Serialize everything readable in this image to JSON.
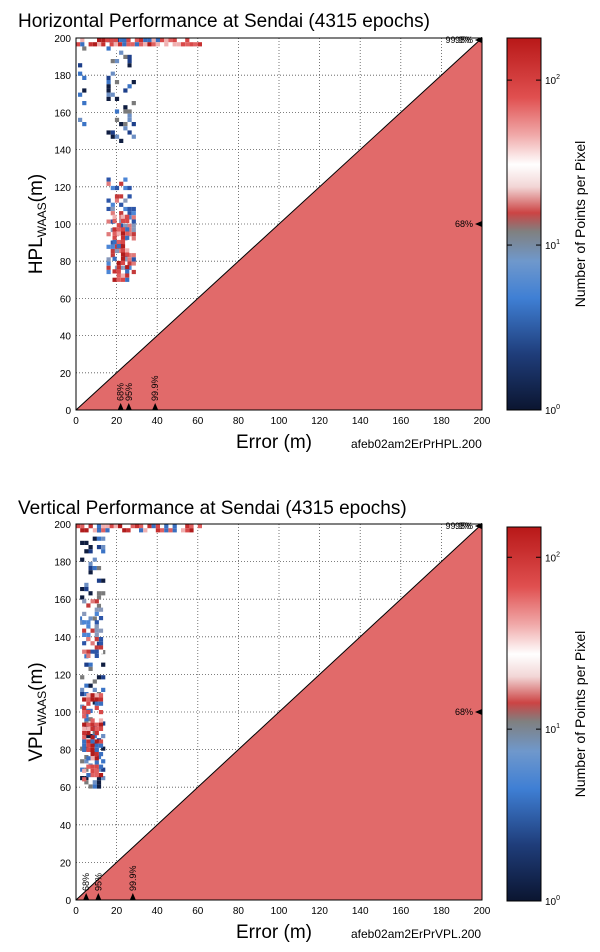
{
  "chart_data": [
    {
      "type": "heatmap",
      "title": "Horizontal Performance at Sendai (4315 epochs)",
      "xlabel": "Error (m)",
      "ylabel_main": "HPL",
      "ylabel_sub": "WAAS",
      "ylabel_unit": "(m)",
      "filename": "afeb02am2ErPrHPL.200",
      "xlim": [
        0,
        200
      ],
      "ylim": [
        0,
        200
      ],
      "xticks": [
        0,
        20,
        40,
        60,
        80,
        100,
        120,
        140,
        160,
        180,
        200
      ],
      "yticks": [
        0,
        20,
        40,
        60,
        80,
        100,
        120,
        140,
        160,
        180,
        200
      ],
      "fill_region": "y <= x (points with error >= protection level)",
      "error_percentiles": [
        {
          "label": "68%",
          "x": 22
        },
        {
          "label": "95%",
          "x": 26
        },
        {
          "label": "99.9%",
          "x": 39
        }
      ],
      "pl_percentiles": [
        {
          "label": "68%",
          "y": 100
        },
        {
          "label": "95%",
          "y": 200
        },
        {
          "label": "99.9%",
          "y": 200
        }
      ],
      "colorbar": {
        "label": "Number of Points per Pixel",
        "scale": "log",
        "ticks": [
          {
            "value": 1,
            "base": "10",
            "exp": "0"
          },
          {
            "value": 10,
            "base": "10",
            "exp": "1"
          },
          {
            "value": 100,
            "base": "10",
            "exp": "2"
          }
        ],
        "range": [
          1,
          180
        ]
      },
      "clusters": [
        {
          "x": [
            1,
            4
          ],
          "y": [
            150,
            200
          ],
          "density": "low"
        },
        {
          "x": [
            15,
            28
          ],
          "y": [
            145,
            200
          ],
          "density": "low"
        },
        {
          "x": [
            15,
            28
          ],
          "y": [
            75,
            125
          ],
          "density": "medium"
        },
        {
          "x": [
            18,
            25
          ],
          "y": [
            70,
            105
          ],
          "density": "high"
        },
        {
          "x": [
            0,
            60
          ],
          "y": [
            196,
            200
          ],
          "density": "high"
        }
      ]
    },
    {
      "type": "heatmap",
      "title": "Vertical Performance at Sendai (4315 epochs)",
      "xlabel": "Error (m)",
      "ylabel_main": "VPL",
      "ylabel_sub": "WAAS",
      "ylabel_unit": "(m)",
      "filename": "afeb02am2ErPrVPL.200",
      "xlim": [
        0,
        200
      ],
      "ylim": [
        0,
        200
      ],
      "xticks": [
        0,
        20,
        40,
        60,
        80,
        100,
        120,
        140,
        160,
        180,
        200
      ],
      "yticks": [
        0,
        20,
        40,
        60,
        80,
        100,
        120,
        140,
        160,
        180,
        200
      ],
      "fill_region": "y <= x (points with error >= protection level)",
      "error_percentiles": [
        {
          "label": "68%",
          "x": 5
        },
        {
          "label": "95%",
          "x": 11
        },
        {
          "label": "99.9%",
          "x": 28
        }
      ],
      "pl_percentiles": [
        {
          "label": "68%",
          "y": 100
        },
        {
          "label": "95%",
          "y": 200
        },
        {
          "label": "99.9%",
          "y": 200
        }
      ],
      "colorbar": {
        "label": "Number of Points per Pixel",
        "scale": "log",
        "ticks": [
          {
            "value": 1,
            "base": "10",
            "exp": "0"
          },
          {
            "value": 10,
            "base": "10",
            "exp": "1"
          },
          {
            "value": 100,
            "base": "10",
            "exp": "2"
          }
        ],
        "range": [
          1,
          150
        ]
      },
      "clusters": [
        {
          "x": [
            2,
            14
          ],
          "y": [
            60,
            200
          ],
          "density": "low"
        },
        {
          "x": [
            3,
            12
          ],
          "y": [
            65,
            110
          ],
          "density": "high"
        },
        {
          "x": [
            3,
            12
          ],
          "y": [
            130,
            160
          ],
          "density": "medium"
        },
        {
          "x": [
            0,
            60
          ],
          "y": [
            196,
            200
          ],
          "density": "high"
        }
      ]
    }
  ]
}
